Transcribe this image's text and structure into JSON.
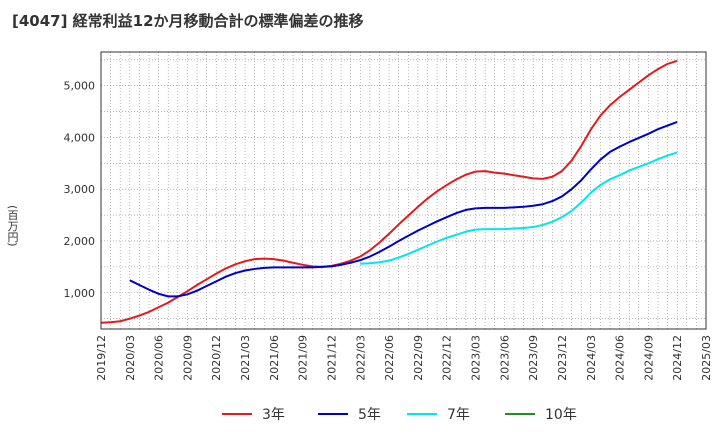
{
  "chart_data": {
    "type": "line",
    "title": "[4047]  経常利益12か月移動合計の標準偏差の推移",
    "ylabel": "(百万円)",
    "xlabel": "",
    "ylim": [
      300,
      5650
    ],
    "yticks": [
      1000,
      2000,
      3000,
      4000,
      5000
    ],
    "ytick_labels": [
      "1,000",
      "2,000",
      "3,000",
      "4,000",
      "5,000"
    ],
    "xlim": [
      "2019/12",
      "2025/03"
    ],
    "xtick_labels": [
      "2019/12",
      "2020/03",
      "2020/06",
      "2020/09",
      "2020/12",
      "2021/03",
      "2021/06",
      "2021/09",
      "2021/12",
      "2022/03",
      "2022/06",
      "2022/09",
      "2022/12",
      "2023/03",
      "2023/06",
      "2023/09",
      "2023/12",
      "2024/03",
      "2024/06",
      "2024/09",
      "2024/12",
      "2025/03"
    ],
    "grid": true,
    "legend_position": "bottom",
    "series": [
      {
        "name": "3年",
        "color": "#e41a1c",
        "x": [
          "2019/12",
          "2020/01",
          "2020/02",
          "2020/03",
          "2020/04",
          "2020/05",
          "2020/06",
          "2020/07",
          "2020/08",
          "2020/09",
          "2020/10",
          "2020/11",
          "2020/12",
          "2021/01",
          "2021/02",
          "2021/03",
          "2021/04",
          "2021/05",
          "2021/06",
          "2021/07",
          "2021/08",
          "2021/09",
          "2021/10",
          "2021/11",
          "2021/12",
          "2022/01",
          "2022/02",
          "2022/03",
          "2022/04",
          "2022/05",
          "2022/06",
          "2022/07",
          "2022/08",
          "2022/09",
          "2022/10",
          "2022/11",
          "2022/12",
          "2023/01",
          "2023/02",
          "2023/03",
          "2023/04",
          "2023/05",
          "2023/06",
          "2023/07",
          "2023/08",
          "2023/09",
          "2023/10",
          "2023/11",
          "2023/12",
          "2024/01",
          "2024/02",
          "2024/03",
          "2024/04",
          "2024/05",
          "2024/06",
          "2024/07",
          "2024/08",
          "2024/09",
          "2024/10",
          "2024/11",
          "2024/12"
        ],
        "values": [
          420,
          430,
          450,
          500,
          560,
          630,
          720,
          810,
          920,
          1030,
          1150,
          1260,
          1370,
          1470,
          1550,
          1610,
          1650,
          1660,
          1650,
          1620,
          1580,
          1540,
          1510,
          1500,
          1520,
          1560,
          1620,
          1700,
          1820,
          1970,
          2140,
          2320,
          2490,
          2660,
          2820,
          2960,
          3080,
          3190,
          3280,
          3340,
          3350,
          3320,
          3300,
          3270,
          3240,
          3210,
          3200,
          3240,
          3350,
          3550,
          3830,
          4150,
          4420,
          4620,
          4780,
          4920,
          5060,
          5200,
          5320,
          5420,
          5480
        ]
      },
      {
        "name": "5年",
        "color": "#0000cc",
        "x": [
          "2020/03",
          "2020/04",
          "2020/05",
          "2020/06",
          "2020/07",
          "2020/08",
          "2020/09",
          "2020/10",
          "2020/11",
          "2020/12",
          "2021/01",
          "2021/02",
          "2021/03",
          "2021/04",
          "2021/05",
          "2021/06",
          "2021/07",
          "2021/08",
          "2021/09",
          "2021/10",
          "2021/11",
          "2021/12",
          "2022/01",
          "2022/02",
          "2022/03",
          "2022/04",
          "2022/05",
          "2022/06",
          "2022/07",
          "2022/08",
          "2022/09",
          "2022/10",
          "2022/11",
          "2022/12",
          "2023/01",
          "2023/02",
          "2023/03",
          "2023/04",
          "2023/05",
          "2023/06",
          "2023/07",
          "2023/08",
          "2023/09",
          "2023/10",
          "2023/11",
          "2023/12",
          "2024/01",
          "2024/02",
          "2024/03",
          "2024/04",
          "2024/05",
          "2024/06",
          "2024/07",
          "2024/08",
          "2024/09",
          "2024/10",
          "2024/11",
          "2024/12"
        ],
        "values": [
          1240,
          1150,
          1060,
          980,
          930,
          930,
          970,
          1040,
          1130,
          1220,
          1310,
          1380,
          1430,
          1460,
          1480,
          1490,
          1490,
          1490,
          1490,
          1490,
          1500,
          1510,
          1540,
          1580,
          1630,
          1700,
          1790,
          1890,
          2000,
          2100,
          2200,
          2290,
          2380,
          2460,
          2540,
          2600,
          2630,
          2640,
          2640,
          2640,
          2650,
          2660,
          2680,
          2710,
          2770,
          2860,
          3000,
          3170,
          3380,
          3570,
          3720,
          3820,
          3910,
          3990,
          4070,
          4160,
          4230,
          4300
        ]
      },
      {
        "name": "7年",
        "color": "#00e5ee",
        "x": [
          "2022/03",
          "2022/04",
          "2022/05",
          "2022/06",
          "2022/07",
          "2022/08",
          "2022/09",
          "2022/10",
          "2022/11",
          "2022/12",
          "2023/01",
          "2023/02",
          "2023/03",
          "2023/04",
          "2023/05",
          "2023/06",
          "2023/07",
          "2023/08",
          "2023/09",
          "2023/10",
          "2023/11",
          "2023/12",
          "2024/01",
          "2024/02",
          "2024/03",
          "2024/04",
          "2024/05",
          "2024/06",
          "2024/07",
          "2024/08",
          "2024/09",
          "2024/10",
          "2024/11",
          "2024/12"
        ],
        "values": [
          1560,
          1570,
          1590,
          1620,
          1680,
          1750,
          1830,
          1910,
          1990,
          2060,
          2120,
          2180,
          2220,
          2230,
          2230,
          2230,
          2240,
          2250,
          2270,
          2310,
          2370,
          2460,
          2580,
          2740,
          2930,
          3080,
          3190,
          3270,
          3360,
          3430,
          3500,
          3580,
          3650,
          3710
        ]
      },
      {
        "name": "10年",
        "color": "#228b22",
        "x": [],
        "values": []
      }
    ]
  }
}
